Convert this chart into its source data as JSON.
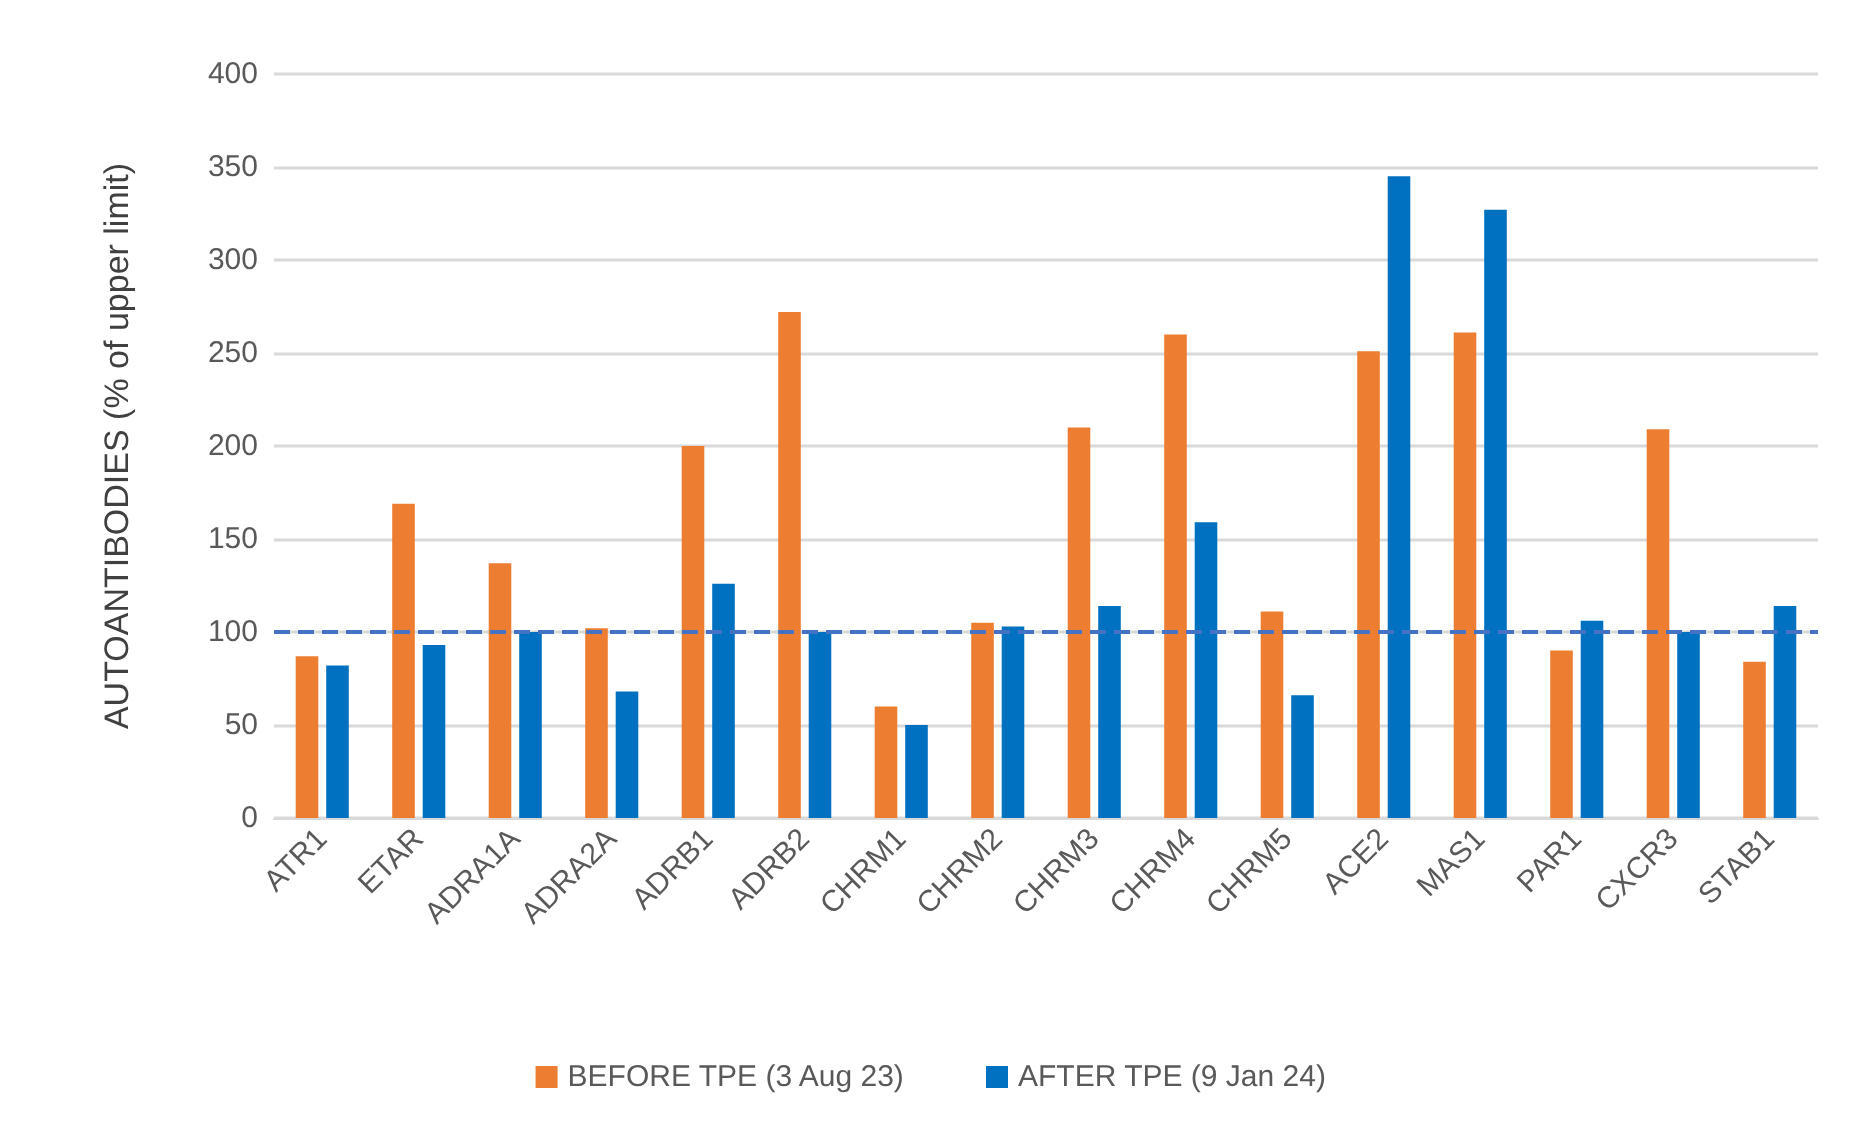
{
  "chart_data": {
    "type": "bar",
    "ylabel": "AUTOANTIBODIES (% of upper limit)",
    "categories": [
      "ATR1",
      "ETAR",
      "ADRA1A",
      "ADRA2A",
      "ADRB1",
      "ADRB2",
      "CHRM1",
      "CHRM2",
      "CHRM3",
      "CHRM4",
      "CHRM5",
      "ACE2",
      "MAS1",
      "PAR1",
      "CXCR3",
      "STAB1"
    ],
    "series": [
      {
        "name": "BEFORE TPE (3 Aug 23)",
        "color": "#ed7d31",
        "values": [
          87,
          169,
          137,
          102,
          200,
          272,
          60,
          105,
          210,
          260,
          111,
          251,
          261,
          90,
          209,
          84
        ]
      },
      {
        "name": "AFTER TPE (9 Jan 24)",
        "color": "#0070c0",
        "values": [
          82,
          93,
          100,
          68,
          126,
          100,
          50,
          103,
          114,
          159,
          66,
          345,
          327,
          106,
          100,
          114
        ]
      }
    ],
    "ylim": [
      0,
      400
    ],
    "yticks": [
      0,
      50,
      100,
      150,
      200,
      250,
      300,
      350,
      400
    ],
    "ref_lines": [
      {
        "axis": "y",
        "value": 100,
        "color": "#4472c4",
        "line_style": "dashed"
      }
    ],
    "grid": "y",
    "legend": "bottom"
  }
}
